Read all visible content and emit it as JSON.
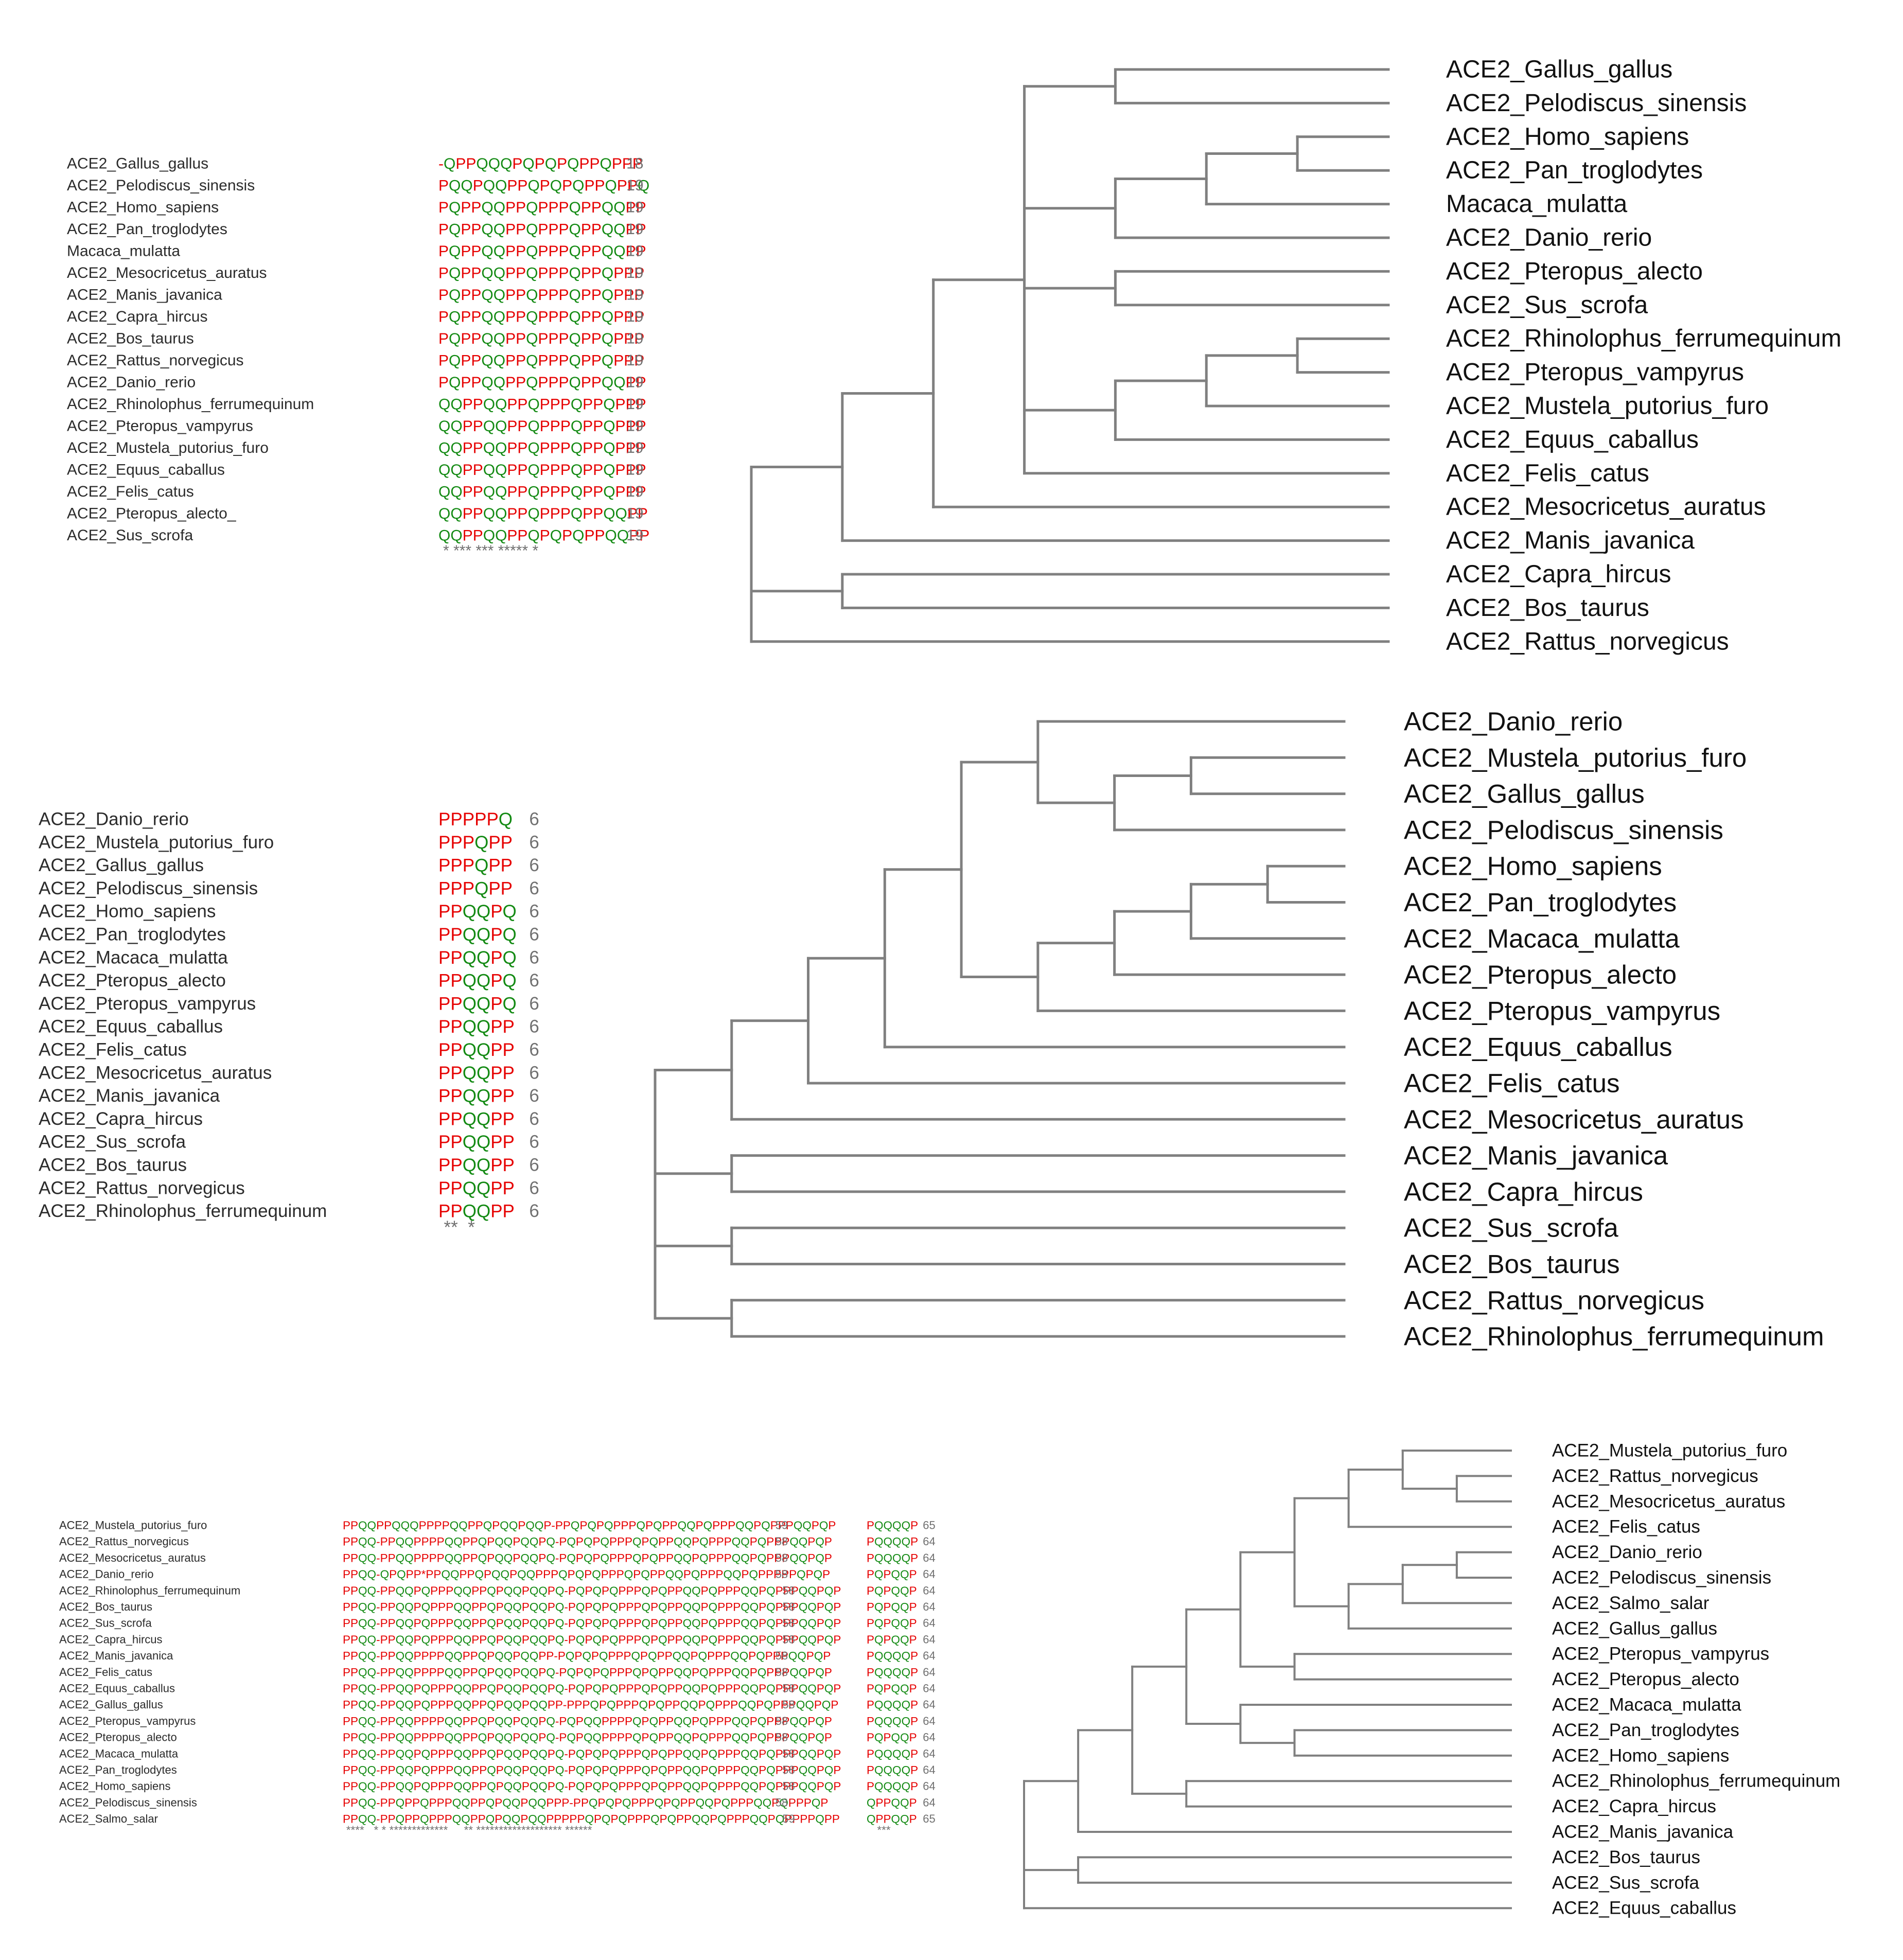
{
  "colors": {
    "P": "#e60000",
    "Q": "#138a13",
    "gap": "#e60000",
    "branch": "#808080",
    "length": "#707070"
  },
  "panels": [
    {
      "id": "panel-a",
      "alignment": {
        "rows": [
          {
            "name": "ACE2_Gallus_gallus",
            "seq": "-QPPQQQPQPQPQPPQPPP",
            "len": "18"
          },
          {
            "name": "ACE2_Pelodiscus_sinensis",
            "seq": "PQQPQQPPQPQPQPPQPPQ",
            "len": "19"
          },
          {
            "name": "ACE2_Homo_sapiens",
            "seq": "PQPPQQPPQPPPQPPQQPP",
            "len": "19"
          },
          {
            "name": "ACE2_Pan_troglodytes",
            "seq": "PQPPQQPPQPPPQPPQQPP",
            "len": "19"
          },
          {
            "name": "Macaca_mulatta",
            "seq": "PQPPQQPPQPPPQPPQQPP",
            "len": "19"
          },
          {
            "name": "ACE2_Mesocricetus_auratus",
            "seq": "PQPPQQPPQPPPQPPQPPP",
            "len": "19"
          },
          {
            "name": "ACE2_Manis_javanica",
            "seq": "PQPPQQPPQPPPQPPQPPP",
            "len": "19"
          },
          {
            "name": "ACE2_Capra_hircus",
            "seq": "PQPPQQPPQPPPQPPQPPP",
            "len": "19"
          },
          {
            "name": "ACE2_Bos_taurus",
            "seq": "PQPPQQPPQPPPQPPQPPP",
            "len": "19"
          },
          {
            "name": "ACE2_Rattus_norvegicus",
            "seq": "PQPPQQPPQPPPQPPQPPP",
            "len": "19"
          },
          {
            "name": "ACE2_Danio_rerio",
            "seq": "PQPPQQPPQPPPQPPQQPP",
            "len": "19"
          },
          {
            "name": "ACE2_Rhinolophus_ferrumequinum",
            "seq": "QQPPQQPPQPPPQPPQPPP",
            "len": "19"
          },
          {
            "name": "ACE2_Pteropus_vampyrus",
            "seq": "QQPPQQPPQPPPQPPQPPP",
            "len": "19"
          },
          {
            "name": "ACE2_Mustela_putorius_furo",
            "seq": "QQPPQQPPQPPPQPPQPPP",
            "len": "19"
          },
          {
            "name": "ACE2_Equus_caballus",
            "seq": "QQPPQQPPQPPPQPPQPPP",
            "len": "19"
          },
          {
            "name": "ACE2_Felis_catus",
            "seq": "QQPPQQPPQPPPQPPQPPP",
            "len": "19"
          },
          {
            "name": "ACE2_Pteropus_alecto_",
            "seq": "QQPPQQPPQPPPQPPQQPP",
            "len": "19"
          },
          {
            "name": "ACE2_Sus_scrofa",
            "seq": "QQPPQQPPQPQPQPPQQPP",
            "len": "19"
          }
        ],
        "consensus": "* *** *** ***** *"
      },
      "tree": {
        "leaves": [
          "ACE2_Gallus_gallus",
          "ACE2_Pelodiscus_sinensis",
          "ACE2_Homo_sapiens",
          "ACE2_Pan_troglodytes",
          "Macaca_mulatta",
          "ACE2_Danio_rerio",
          "ACE2_Pteropus_alecto",
          "ACE2_Sus_scrofa",
          "ACE2_Rhinolophus_ferrumequinum",
          "ACE2_Pteropus_vampyrus",
          "ACE2_Mustela_putorius_furo",
          "ACE2_Equus_caballus",
          "ACE2_Felis_catus",
          "ACE2_Mesocricetus_auratus",
          "ACE2_Manis_javanica",
          "ACE2_Capra_hircus",
          "ACE2_Bos_taurus",
          "ACE2_Rattus_norvegicus"
        ],
        "newick": "(((((0,1),(((2,3),4),5),(6,7),(((8,9),10),11),12),13),14),(15,16),17)"
      }
    },
    {
      "id": "panel-b",
      "alignment": {
        "rows": [
          {
            "name": "ACE2_Danio_rerio",
            "seq": "PPPPPQ",
            "len": "6"
          },
          {
            "name": "ACE2_Mustela_putorius_furo",
            "seq": "PPPQPP",
            "len": "6"
          },
          {
            "name": "ACE2_Gallus_gallus",
            "seq": "PPPQPP",
            "len": "6"
          },
          {
            "name": "ACE2_Pelodiscus_sinensis",
            "seq": "PPPQPP",
            "len": "6"
          },
          {
            "name": "ACE2_Homo_sapiens",
            "seq": "PPQQPQ",
            "len": "6"
          },
          {
            "name": "ACE2_Pan_troglodytes",
            "seq": "PPQQPQ",
            "len": "6"
          },
          {
            "name": "ACE2_Macaca_mulatta",
            "seq": "PPQQPQ",
            "len": "6"
          },
          {
            "name": "ACE2_Pteropus_alecto",
            "seq": "PPQQPQ",
            "len": "6"
          },
          {
            "name": "ACE2_Pteropus_vampyrus",
            "seq": "PPQQPQ",
            "len": "6"
          },
          {
            "name": "ACE2_Equus_caballus",
            "seq": "PPQQPP",
            "len": "6"
          },
          {
            "name": "ACE2_Felis_catus",
            "seq": "PPQQPP",
            "len": "6"
          },
          {
            "name": "ACE2_Mesocricetus_auratus",
            "seq": "PPQQPP",
            "len": "6"
          },
          {
            "name": "ACE2_Manis_javanica",
            "seq": "PPQQPP",
            "len": "6"
          },
          {
            "name": "ACE2_Capra_hircus",
            "seq": "PPQQPP",
            "len": "6"
          },
          {
            "name": "ACE2_Sus_scrofa",
            "seq": "PPQQPP",
            "len": "6"
          },
          {
            "name": "ACE2_Bos_taurus",
            "seq": "PPQQPP",
            "len": "6"
          },
          {
            "name": "ACE2_Rattus_norvegicus",
            "seq": "PPQQPP",
            "len": "6"
          },
          {
            "name": "ACE2_Rhinolophus_ferrumequinum",
            "seq": "PPQQPP",
            "len": "6"
          }
        ],
        "consensus": "**  *"
      },
      "tree": {
        "leaves": [
          "ACE2_Danio_rerio",
          "ACE2_Mustela_putorius_furo",
          "ACE2_Gallus_gallus",
          "ACE2_Pelodiscus_sinensis",
          "ACE2_Homo_sapiens",
          "ACE2_Pan_troglodytes",
          "ACE2_Macaca_mulatta",
          "ACE2_Pteropus_alecto",
          "ACE2_Pteropus_vampyrus",
          "ACE2_Equus_caballus",
          "ACE2_Felis_catus",
          "ACE2_Mesocricetus_auratus",
          "ACE2_Manis_javanica",
          "ACE2_Capra_hircus",
          "ACE2_Sus_scrofa",
          "ACE2_Bos_taurus",
          "ACE2_Rattus_norvegicus",
          "ACE2_Rhinolophus_ferrumequinum"
        ],
        "newick": "((((((0,((1,2),3)),((((4,5),6),7),8)),9),10),11),(12,13),(14,15),(16,17))"
      }
    },
    {
      "id": "panel-c",
      "alignment": {
        "rows": [
          {
            "name": "ACE2_Mustela_putorius_furo",
            "seq": "PPQQPPQQQPPPPQQPPQPQQPQQP-PPQPQPQPPPQPQPPQQPQPPPQQPQPPPQQPQP",
            "len": "59",
            "seq2": "PQQQQP",
            "len2": "65"
          },
          {
            "name": "ACE2_Rattus_norvegicus",
            "seq": "PPQQ-PPQQPPPPQQPPQPQQPQQPQ-PQPQPQPPPQPQPPQQPQPPPQQPQPPPQQPQP",
            "len": "58",
            "seq2": "PQQQQP",
            "len2": "64"
          },
          {
            "name": "ACE2_Mesocricetus_auratus",
            "seq": "PPQQ-PPQQPPPPQQPPQPQQPQQPQ-PQPQPQPPPQPQPPQQPQPPPQQPQPPPQQPQP",
            "len": "58",
            "seq2": "PQQQQP",
            "len2": "64"
          },
          {
            "name": "ACE2_Danio_rerio",
            "seq": "PPQQ-QPQPP*PPQQPPQPQQPQQPPPQPQPQPPPQPQPPQQPQPPPQQPQPPPPPQPQP",
            "len": "58",
            "seq2": "PQPQQP",
            "len2": "64"
          },
          {
            "name": "ACE2_Rhinolophus_ferrumequinum",
            "seq": "PPQQ-PPQQPQPPPQQPPQPQQPQQPQ-PQPQPQPPPQPQPPQQPQPPPQQPQPPPQQPQP",
            "len": "58",
            "seq2": "PQPQQP",
            "len2": "64"
          },
          {
            "name": "ACE2_Bos_taurus",
            "seq": "PPQQ-PPQQPQPPPQQPPQPQQPQQPQ-PQPQPQPPPQPQPPQQPQPPPQQPQPPPQQPQP",
            "len": "58",
            "seq2": "PQPQQP",
            "len2": "64"
          },
          {
            "name": "ACE2_Sus_scrofa",
            "seq": "PPQQ-PPQQPQPPPQQPPQPQQPQQPQ-PQPQPQPPPQPQPPQQPQPPPQQPQPPPQQPQP",
            "len": "58",
            "seq2": "PQPQQP",
            "len2": "64"
          },
          {
            "name": "ACE2_Capra_hircus",
            "seq": "PPQQ-PPQQPQPPPQQPPQPQQPQQPQ-PQPQPQPPPQPQPPQQPQPPPQQPQPPPQQPQP",
            "len": "58",
            "seq2": "PQPQQP",
            "len2": "64"
          },
          {
            "name": "ACE2_Manis_javanica",
            "seq": "PPQQ-PPQQPPPPQQPPQPQQPQQPP-PQPQPQPPPQPQPPQQPQPPPQQPQPPPQQPQP",
            "len": "58",
            "seq2": "PQQQQP",
            "len2": "64"
          },
          {
            "name": "ACE2_Felis_catus",
            "seq": "PPQQ-PPQQPPPPQQPPQPQQPQQPQ-PQPQPQPPPQPQPPQQPQPPPQQPQPPPQQPQP",
            "len": "58",
            "seq2": "PQQQQP",
            "len2": "64"
          },
          {
            "name": "ACE2_Equus_caballus",
            "seq": "PPQQ-PPQQPQPPPQQPPQPQQPQQPQ-PQPQPQPPPQPQPPQQPQPPPQQPQPPPQQPQP",
            "len": "58",
            "seq2": "PQPQQP",
            "len2": "64"
          },
          {
            "name": "ACE2_Gallus_gallus",
            "seq": "PPQQ-PPQQPQPPPQQPPQPQQPQQPP-PPPQPQPPPQPQPPQQPQPPPQQPQPPPQQPQP",
            "len": "58",
            "seq2": "PQQQQP",
            "len2": "64"
          },
          {
            "name": "ACE2_Pteropus_vampyrus",
            "seq": "PPQQ-PPQQPPPPQQPPQPQQPQQPQ-PQPQQPPPPQPQPPQQPQPPPQQPQPPPQQPQP",
            "len": "58",
            "seq2": "PQQQQP",
            "len2": "64"
          },
          {
            "name": "ACE2_Pteropus_alecto",
            "seq": "PPQQ-PPQQPPPPQQPPQPQQPQQPQ-PQPQQPPPPQPQPPQQPQPPPQQPQPPPQQPQP",
            "len": "58",
            "seq2": "PQPQQP",
            "len2": "64"
          },
          {
            "name": "ACE2_Macaca_mulatta",
            "seq": "PPQQ-PPQQPQPPPQQPPQPQQPQQPQ-PQPQPQPPPQPQPPQQPQPPPQQPQPPPQQPQP",
            "len": "58",
            "seq2": "PQQQQP",
            "len2": "64"
          },
          {
            "name": "ACE2_Pan_troglodytes",
            "seq": "PPQQ-PPQQPQPPPQQPPQPQQPQQPQ-PQPQPQPPPQPQPPQQPQPPPQQPQPPPQQPQP",
            "len": "58",
            "seq2": "PQQQQP",
            "len2": "64"
          },
          {
            "name": "ACE2_Homo_sapiens",
            "seq": "PPQQ-PPQQPQPPPQQPPQPQQPQQPQ-PQPQPQPPPQPQPPQQPQPPPQQPQPPPQQPQP",
            "len": "58",
            "seq2": "PQQQQP",
            "len2": "64"
          },
          {
            "name": "ACE2_Pelodiscus_sinensis",
            "seq": "PPQQ-PPQPPQPPPQQPPQPQQPQQPPP-PPQPQPQPPPQPQPPQQPQPPPQQPQPPPQP",
            "len": "58",
            "seq2": "QPPQQP",
            "len2": "64"
          },
          {
            "name": "ACE2_Salmo_salar",
            "seq": "PPQQ-PPQPPQPPPQQPPQPQQPQQPPPPPQPQPQPPPQPQPPQQPQPPPQQPQPPPPQPP",
            "len": "59",
            "seq2": "QPPQQP",
            "len2": "65"
          }
        ],
        "consensus": "****   * * *************     ** ******************* ******",
        "consensus2": "***"
      },
      "tree": {
        "leaves": [
          "ACE2_Mustela_putorius_furo",
          "ACE2_Rattus_norvegicus",
          "ACE2_Mesocricetus_auratus",
          "ACE2_Felis_catus",
          "ACE2_Danio_rerio",
          "ACE2_Pelodiscus_sinensis",
          "ACE2_Salmo_salar",
          "ACE2_Gallus_gallus",
          "ACE2_Pteropus_vampyrus",
          "ACE2_Pteropus_alecto",
          "ACE2_Macaca_mulatta",
          "ACE2_Pan_troglodytes",
          "ACE2_Homo_sapiens",
          "ACE2_Rhinolophus_ferrumequinum",
          "ACE2_Capra_hircus",
          "ACE2_Manis_javanica",
          "ACE2_Bos_taurus",
          "ACE2_Sus_scrofa",
          "ACE2_Equus_caballus"
        ],
        "newick": "((((((((0,(1,2)),3),(((4,5),6),7)),(8,9)),(10,(11,12))),(13,14)),15),(16,17),18)"
      }
    }
  ]
}
